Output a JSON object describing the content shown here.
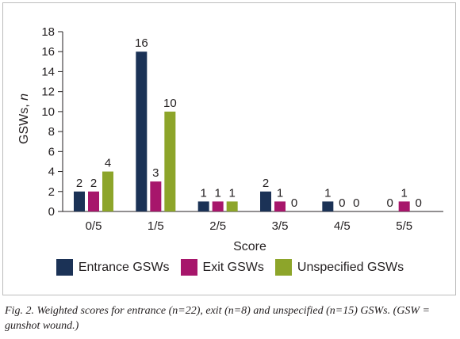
{
  "chart_data": {
    "type": "bar",
    "categories": [
      "0/5",
      "1/5",
      "2/5",
      "3/5",
      "4/5",
      "5/5"
    ],
    "series": [
      {
        "name": "Entrance GSWs",
        "color": "#1b3256",
        "values": [
          2,
          16,
          1,
          2,
          1,
          0
        ]
      },
      {
        "name": "Exit GSWs",
        "color": "#a7166b",
        "values": [
          2,
          3,
          1,
          1,
          0,
          1
        ]
      },
      {
        "name": "Unspecified GSWs",
        "color": "#8da52a",
        "values": [
          4,
          10,
          1,
          0,
          0,
          0
        ]
      }
    ],
    "xlabel": "Score",
    "ylabel_main": "GSWs, ",
    "ylabel_italic": "n",
    "ylim": [
      0,
      18
    ],
    "yticks": [
      0,
      2,
      4,
      6,
      8,
      10,
      12,
      14,
      16,
      18
    ],
    "grid": false,
    "data_labels": true,
    "legend_position": "bottom"
  },
  "caption": "Fig. 2. Weighted scores for entrance (n=22), exit (n=8) and unspecified (n=15) GSWs. (GSW = gunshot wound.)"
}
